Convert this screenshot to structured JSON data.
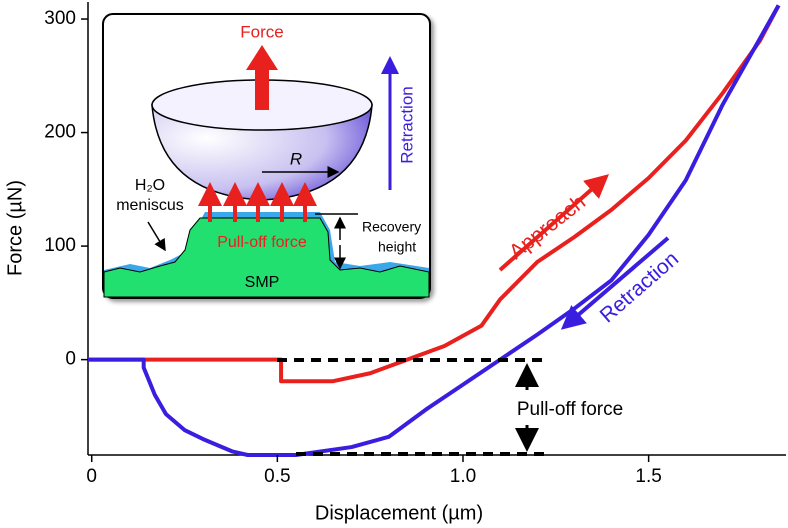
{
  "chart_data": {
    "type": "line",
    "x_label": "Displacement (µm)",
    "y_label": "Force (µN)",
    "xlim": [
      -0.01,
      1.87
    ],
    "ylim": [
      -84,
      315
    ],
    "xticks": [
      0,
      0.5,
      {
        "value": 1,
        "label": "1.0"
      },
      1.5
    ],
    "yticks": [
      0,
      100,
      200,
      300
    ],
    "series": [
      {
        "name": "Approach",
        "color": "#e8201e",
        "x": [
          -0.01,
          0.51,
          0.51,
          0.65,
          0.75,
          0.85,
          0.95,
          1.05,
          1.1,
          1.2,
          1.3,
          1.4,
          1.5,
          1.6,
          1.7,
          1.8,
          1.85
        ],
        "values": [
          0,
          0,
          -19,
          -19,
          -12,
          0,
          12,
          30,
          53,
          86,
          108,
          132,
          160,
          193,
          235,
          281,
          312
        ]
      },
      {
        "name": "Retraction",
        "color": "#3a1ee0",
        "x": [
          1.85,
          1.7,
          1.6,
          1.5,
          1.4,
          1.3,
          1.2,
          1.1,
          1.0,
          0.9,
          0.8,
          0.7,
          0.55,
          0.42,
          0.38,
          0.3,
          0.25,
          0.2,
          0.17,
          0.14,
          0.14,
          -0.01
        ],
        "values": [
          312,
          225,
          158,
          110,
          70,
          45,
          22,
          0,
          -22,
          -44,
          -68,
          -77,
          -84,
          -84,
          -81,
          -70,
          -62,
          -48,
          -31,
          -7,
          0,
          0
        ]
      }
    ],
    "annotations": {
      "pull_off": "Pull-off force"
    },
    "inset": {
      "force": "Force",
      "retraction": "Retraction",
      "radius": "R",
      "water": "H₂O",
      "meniscus": "meniscus",
      "pull_off": "Pull-off force",
      "recovery": "Recovery",
      "height": "height",
      "substrate": "SMP"
    }
  }
}
